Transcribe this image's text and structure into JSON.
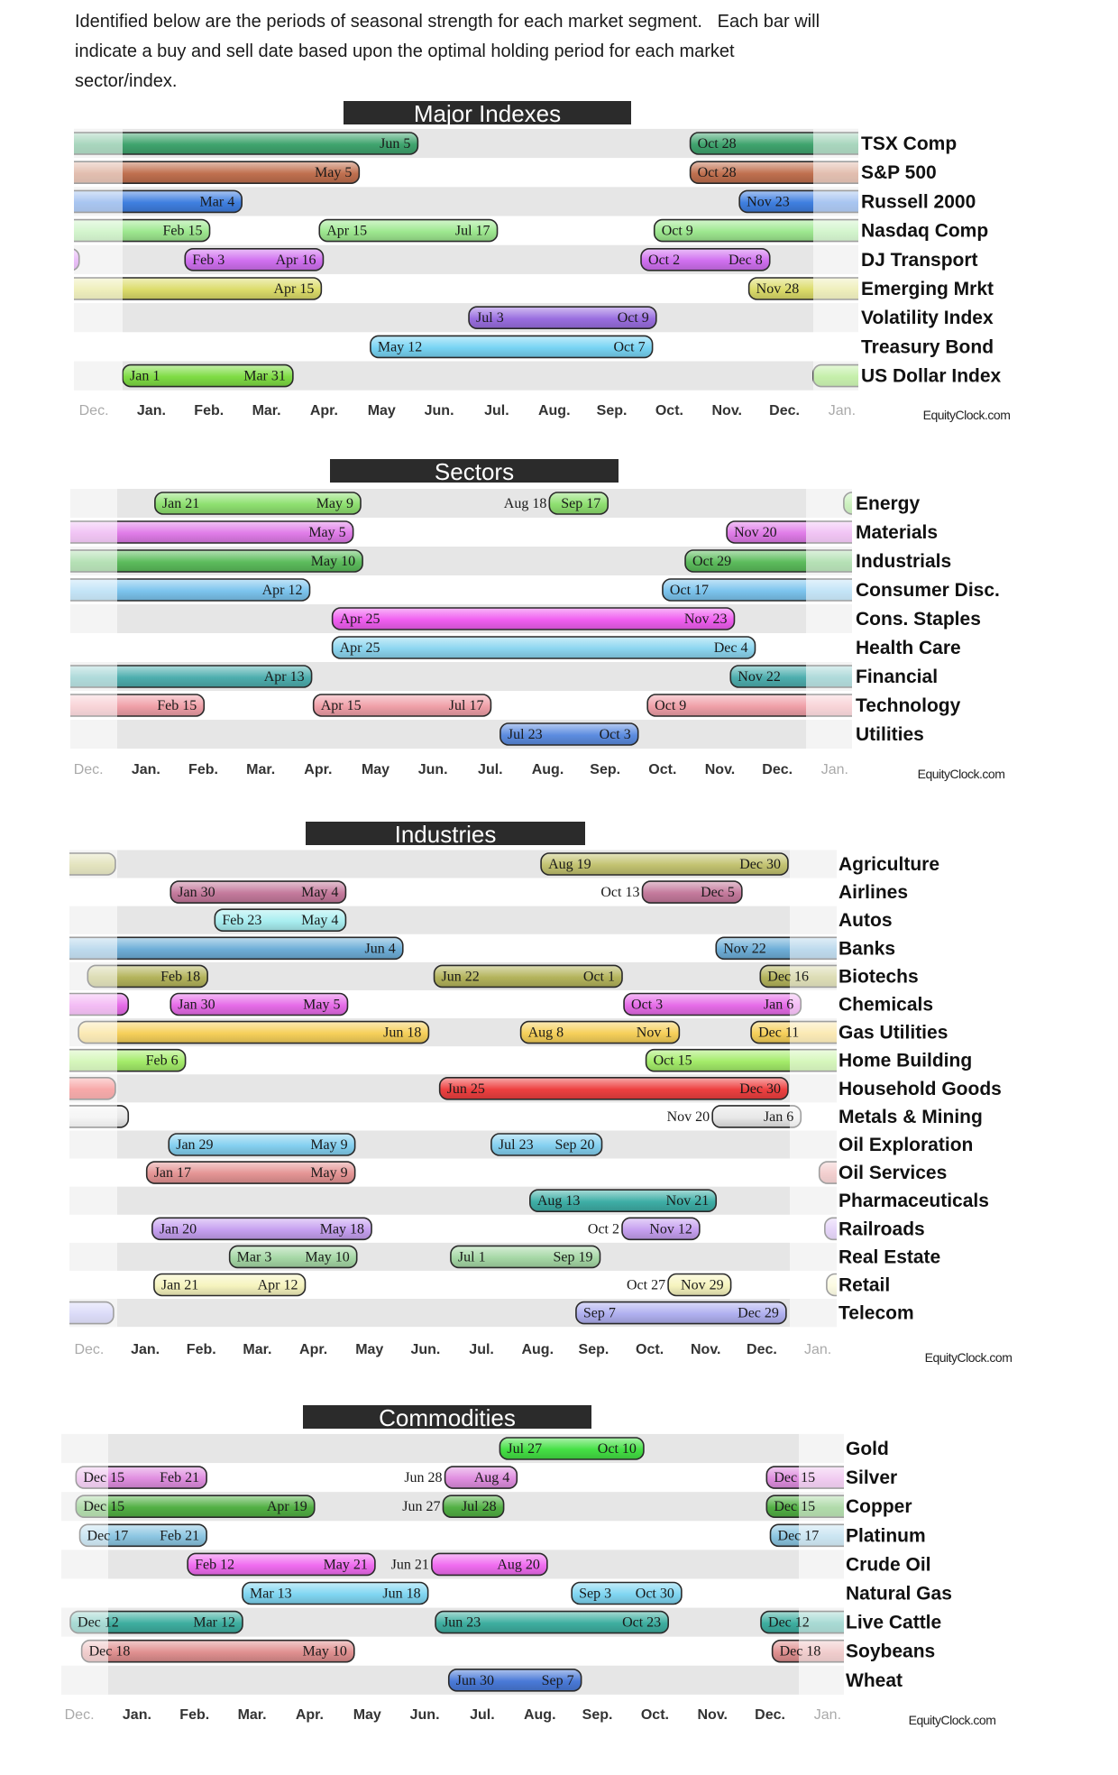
{
  "intro": {
    "lines": [
      "Identified below are the periods of seasonal strength for each market segment.   Each bar will",
      "indicate a buy and sell date based upon the optimal holding period for each market",
      "sector/index."
    ]
  },
  "axis_months": [
    "Dec.",
    "Jan.",
    "Feb.",
    "Mar.",
    "Apr.",
    "May",
    "Jun.",
    "Jul.",
    "Aug.",
    "Sep.",
    "Oct.",
    "Nov.",
    "Dec.",
    "Jan."
  ],
  "watermark": "EquityClock.com",
  "colors": {
    "title_bg": "#2b2b2b",
    "row_gray": "#e6e6e6",
    "bar_border": "#2a2a2a"
  },
  "chart_data": [
    {
      "type": "bar",
      "title": "Major Indexes",
      "xlabel": "",
      "ylabel": "",
      "rows": [
        {
          "name": "TSX Comp",
          "color": "#3fa46e",
          "periods": [
            {
              "buy": "Oct 28",
              "sell": "Jun 5"
            }
          ]
        },
        {
          "name": "S&P 500",
          "color": "#c0704f",
          "periods": [
            {
              "buy": "Oct 28",
              "sell": "May 5"
            }
          ]
        },
        {
          "name": "Russell 2000",
          "color": "#3f7fe0",
          "periods": [
            {
              "buy": "Nov 23",
              "sell": "Mar 4"
            }
          ]
        },
        {
          "name": "Nasdaq Comp",
          "color": "#9ee890",
          "periods": [
            {
              "buy": "Oct 9",
              "sell": "Feb 15"
            },
            {
              "buy": "Apr 15",
              "sell": "Jul 17"
            }
          ]
        },
        {
          "name": "DJ Transport",
          "color": "#d070f0",
          "periods": [
            {
              "buy": "Feb 3",
              "sell": "Apr 16"
            },
            {
              "buy": "Oct 2",
              "sell": "Dec 8"
            }
          ]
        },
        {
          "name": "Emerging Mrkt",
          "color": "#dcdc6a",
          "periods": [
            {
              "buy": "Nov 28",
              "sell": "Apr 15"
            }
          ]
        },
        {
          "name": "Volatility Index",
          "color": "#9a6ee0",
          "periods": [
            {
              "buy": "Jul 3",
              "sell": "Oct 9"
            }
          ]
        },
        {
          "name": "Treasury Bond",
          "color": "#78d4f4",
          "periods": [
            {
              "buy": "May 12",
              "sell": "Oct 7"
            }
          ]
        },
        {
          "name": "US Dollar Index",
          "color": "#7fdc44",
          "periods": [
            {
              "buy": "Jan 1",
              "sell": "Mar 31"
            }
          ]
        }
      ]
    },
    {
      "type": "bar",
      "title": "Sectors",
      "xlabel": "",
      "ylabel": "",
      "rows": [
        {
          "name": "Energy",
          "color": "#8ee070",
          "periods": [
            {
              "buy": "Jan 21",
              "sell": "May 9"
            },
            {
              "buy": "Aug 18",
              "sell": "Sep 17",
              "start_label_outside": true
            }
          ]
        },
        {
          "name": "Materials",
          "color": "#e07ce8",
          "periods": [
            {
              "buy": "Nov 20",
              "sell": "May 5"
            }
          ]
        },
        {
          "name": "Industrials",
          "color": "#5cbc5c",
          "periods": [
            {
              "buy": "Oct 29",
              "sell": "May 10"
            }
          ]
        },
        {
          "name": "Consumer Disc.",
          "color": "#7cc4ee",
          "periods": [
            {
              "buy": "Oct 17",
              "sell": "Apr 12"
            }
          ]
        },
        {
          "name": "Cons. Staples",
          "color": "#f05ef0",
          "periods": [
            {
              "buy": "Apr 25",
              "sell": "Nov 23"
            }
          ]
        },
        {
          "name": "Health Care",
          "color": "#8cd6f0",
          "periods": [
            {
              "buy": "Apr 25",
              "sell": "Dec 4"
            }
          ]
        },
        {
          "name": "Financial",
          "color": "#4eaeae",
          "periods": [
            {
              "buy": "Nov 22",
              "sell": "Apr 13"
            }
          ]
        },
        {
          "name": "Technology",
          "color": "#f0a0a8",
          "periods": [
            {
              "buy": "Oct 9",
              "sell": "Feb 15"
            },
            {
              "buy": "Apr 15",
              "sell": "Jul 17"
            }
          ]
        },
        {
          "name": "Utilities",
          "color": "#5c8ce0",
          "periods": [
            {
              "buy": "Jul 23",
              "sell": "Oct 3"
            }
          ]
        }
      ]
    },
    {
      "type": "bar",
      "title": "Industries",
      "xlabel": "",
      "ylabel": "",
      "rows": [
        {
          "name": "Agriculture",
          "color": "#c2c270",
          "periods": [
            {
              "buy": "Aug 19",
              "sell": "Dec 30"
            }
          ]
        },
        {
          "name": "Airlines",
          "color": "#c47a9c",
          "periods": [
            {
              "buy": "Jan 30",
              "sell": "May 4"
            },
            {
              "buy": "Oct 13",
              "sell": "Dec 5",
              "start_label_outside": true
            }
          ]
        },
        {
          "name": "Autos",
          "color": "#a8eef0",
          "periods": [
            {
              "buy": "Feb 23",
              "sell": "May 4"
            }
          ]
        },
        {
          "name": "Banks",
          "color": "#6eaed8",
          "periods": [
            {
              "buy": "Nov 22",
              "sell": "Jun 4"
            }
          ]
        },
        {
          "name": "Biotechs",
          "color": "#b4b45c",
          "periods": [
            {
              "buy": "Dec 16",
              "sell": "Feb 18"
            },
            {
              "buy": "Jun 22",
              "sell": "Oct 1"
            }
          ]
        },
        {
          "name": "Chemicals",
          "color": "#e66ce8",
          "periods": [
            {
              "buy": "Jan 30",
              "sell": "May 5"
            },
            {
              "buy": "Oct 3",
              "sell": "Jan 6"
            }
          ]
        },
        {
          "name": "Gas Utilities",
          "color": "#f6d05a",
          "periods": [
            {
              "buy": "Dec 11",
              "sell": "Jun 18"
            },
            {
              "buy": "Aug 8",
              "sell": "Nov 1"
            }
          ]
        },
        {
          "name": "Home Building",
          "color": "#a4ec6a",
          "periods": [
            {
              "buy": "Oct 15",
              "sell": "Feb 6"
            }
          ]
        },
        {
          "name": "Household Goods",
          "color": "#ee4040",
          "periods": [
            {
              "buy": "Jun 25",
              "sell": "Dec 30"
            }
          ]
        },
        {
          "name": "Metals & Mining",
          "color": "#e8e8e8",
          "periods": [
            {
              "buy": "Nov 20",
              "sell": "Jan 6",
              "start_label_outside": true
            }
          ]
        },
        {
          "name": "Oil Exploration",
          "color": "#84d0f0",
          "periods": [
            {
              "buy": "Jan 29",
              "sell": "May 9"
            },
            {
              "buy": "Jul 23",
              "sell": "Sep 20"
            }
          ]
        },
        {
          "name": "Oil Services",
          "color": "#e49494",
          "periods": [
            {
              "buy": "Jan 17",
              "sell": "May 9"
            }
          ]
        },
        {
          "name": "Pharmaceuticals",
          "color": "#3eaea6",
          "periods": [
            {
              "buy": "Aug 13",
              "sell": "Nov 21"
            }
          ]
        },
        {
          "name": "Railroads",
          "color": "#c6a0f0",
          "periods": [
            {
              "buy": "Jan 20",
              "sell": "May 18"
            },
            {
              "buy": "Oct 2",
              "sell": "Nov 12",
              "start_label_outside": true
            }
          ]
        },
        {
          "name": "Real Estate",
          "color": "#a6d8a6",
          "periods": [
            {
              "buy": "Mar 3",
              "sell": "May 10"
            },
            {
              "buy": "Jul 1",
              "sell": "Sep 19"
            }
          ]
        },
        {
          "name": "Retail",
          "color": "#f6f4be",
          "periods": [
            {
              "buy": "Jan 21",
              "sell": "Apr 12"
            },
            {
              "buy": "Oct 27",
              "sell": "Nov 29",
              "start_label_outside": true
            }
          ]
        },
        {
          "name": "Telecom",
          "color": "#b0b0f0",
          "periods": [
            {
              "buy": "Sep 7",
              "sell": "Dec 29"
            }
          ]
        }
      ]
    },
    {
      "type": "bar",
      "title": "Commodities",
      "xlabel": "",
      "ylabel": "",
      "rows": [
        {
          "name": "Gold",
          "color": "#44e044",
          "periods": [
            {
              "buy": "Jul 27",
              "sell": "Oct 10"
            }
          ]
        },
        {
          "name": "Silver",
          "color": "#e08ee0",
          "periods": [
            {
              "buy": "Dec 15",
              "sell": "Feb 21"
            },
            {
              "buy": "Jun 28",
              "sell": "Aug 4",
              "start_label_outside": true
            }
          ]
        },
        {
          "name": "Copper",
          "color": "#52b044",
          "periods": [
            {
              "buy": "Dec 15",
              "sell": "Apr 19"
            },
            {
              "buy": "Jun 27",
              "sell": "Jul 28",
              "start_label_outside": true
            }
          ]
        },
        {
          "name": "Platinum",
          "color": "#8cc6e2",
          "periods": [
            {
              "buy": "Dec 17",
              "sell": "Feb 21"
            }
          ]
        },
        {
          "name": "Crude Oil",
          "color": "#f06cf0",
          "periods": [
            {
              "buy": "Feb 12",
              "sell": "May 21"
            },
            {
              "buy": "Jun 21",
              "sell": "Aug 20",
              "start_label_outside": true
            }
          ]
        },
        {
          "name": "Natural Gas",
          "color": "#80d6f2",
          "periods": [
            {
              "buy": "Mar 13",
              "sell": "Jun 18"
            },
            {
              "buy": "Sep 3",
              "sell": "Oct 30"
            }
          ]
        },
        {
          "name": "Live Cattle",
          "color": "#3eaea0",
          "periods": [
            {
              "buy": "Dec 12",
              "sell": "Mar 12"
            },
            {
              "buy": "Jun 23",
              "sell": "Oct 23"
            }
          ]
        },
        {
          "name": "Soybeans",
          "color": "#e09090",
          "periods": [
            {
              "buy": "Dec 18",
              "sell": "May 10"
            }
          ]
        },
        {
          "name": "Wheat",
          "color": "#4a7ad8",
          "periods": [
            {
              "buy": "Jun 30",
              "sell": "Sep 7"
            }
          ]
        }
      ]
    }
  ]
}
